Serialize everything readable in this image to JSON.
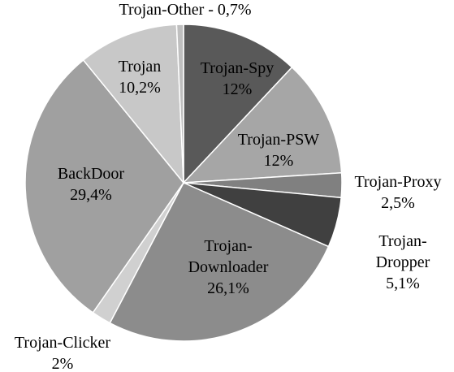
{
  "chart_data": {
    "type": "pie",
    "title": "",
    "slices": [
      {
        "label": "Trojan-Spy",
        "value": 12,
        "value_text": "12%",
        "color": "#595959",
        "label_lines": [
          "Trojan-Spy",
          "12%"
        ]
      },
      {
        "label": "Trojan-PSW",
        "value": 12,
        "value_text": "12%",
        "color": "#a6a6a6",
        "label_lines": [
          "Trojan-PSW",
          "12%"
        ]
      },
      {
        "label": "Trojan-Proxy",
        "value": 2.5,
        "value_text": "2,5%",
        "color": "#808080",
        "label_lines": [
          "Trojan-Proxy",
          "2,5%"
        ]
      },
      {
        "label": "Trojan-Dropper",
        "value": 5.1,
        "value_text": "5,1%",
        "color": "#404040",
        "label_lines": [
          "Trojan-",
          "Dropper",
          "5,1%"
        ]
      },
      {
        "label": "Trojan-Downloader",
        "value": 26.1,
        "value_text": "26,1%",
        "color": "#8c8c8c",
        "label_lines": [
          "Trojan-",
          "Downloader",
          "26,1%"
        ]
      },
      {
        "label": "Trojan-Clicker",
        "value": 2,
        "value_text": "2%",
        "color": "#d0d0d0",
        "label_lines": [
          "Trojan-Clicker",
          "2%"
        ]
      },
      {
        "label": "BackDoor",
        "value": 29.4,
        "value_text": "29,4%",
        "color": "#a0a0a0",
        "label_lines": [
          "BackDoor",
          "29,4%"
        ]
      },
      {
        "label": "Trojan",
        "value": 10.2,
        "value_text": "10,2%",
        "color": "#c8c8c8",
        "label_lines": [
          "Trojan",
          "10,2%"
        ]
      },
      {
        "label": "Trojan-Other",
        "value": 0.7,
        "value_text": "0,7%",
        "color": "#bfbfbf",
        "label_lines": [
          "Trojan-Other - 0,7%"
        ]
      }
    ]
  }
}
